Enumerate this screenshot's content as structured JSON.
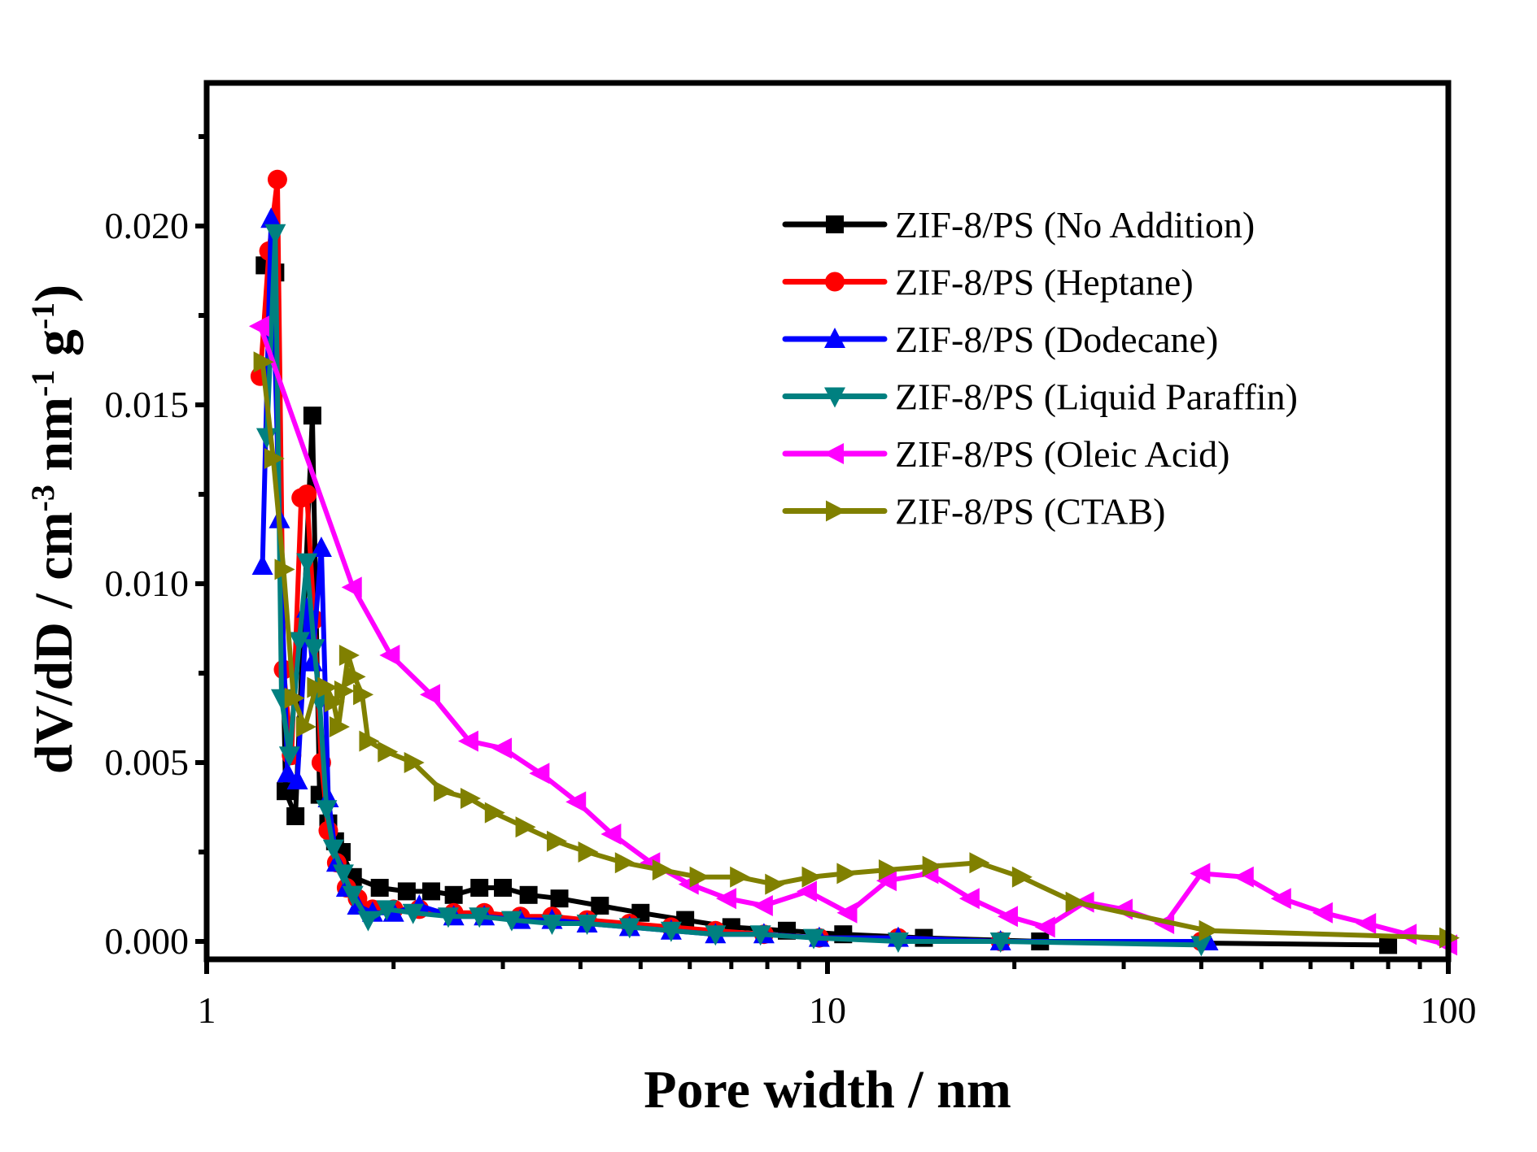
{
  "chart_data": {
    "type": "line",
    "title": "",
    "xlabel": "Pore width / nm",
    "ylabel": "dV/dD / cm-3 nm-1 g-1",
    "ylabel_parts": {
      "base": "dV/dD / cm",
      "sup1": "-3",
      "mid": " nm",
      "sup2": "-1",
      "mid2": " g",
      "sup3": "-1",
      "end": ")"
    },
    "xscale": "log",
    "xlim": [
      1,
      100
    ],
    "ylim": [
      -0.0005,
      0.024
    ],
    "x_ticks": [
      1,
      10,
      100
    ],
    "x_tick_labels": [
      "1",
      "10",
      "100"
    ],
    "y_ticks": [
      0.0,
      0.005,
      0.01,
      0.015,
      0.02
    ],
    "y_tick_labels": [
      "0.000",
      "0.005",
      "0.010",
      "0.015",
      "0.020"
    ],
    "grid": false,
    "legend_position": "top-right",
    "series": [
      {
        "name": "ZIF-8/PS (No Addition)",
        "color": "#000000",
        "marker": "square",
        "x": [
          1.24,
          1.29,
          1.34,
          1.39,
          1.48,
          1.52,
          1.57,
          1.61,
          1.65,
          1.72,
          1.9,
          2.1,
          2.3,
          2.5,
          2.75,
          3.0,
          3.3,
          3.7,
          4.3,
          5.0,
          5.9,
          7.0,
          8.6,
          10.6,
          14.3,
          22,
          80
        ],
        "y": [
          0.0189,
          0.0187,
          0.0042,
          0.0035,
          0.0147,
          0.0041,
          0.0033,
          0.0028,
          0.0025,
          0.0018,
          0.0015,
          0.0014,
          0.0014,
          0.0013,
          0.0015,
          0.0015,
          0.0013,
          0.0012,
          0.001,
          0.0008,
          0.0006,
          0.0004,
          0.0003,
          0.0002,
          0.0001,
          0.0,
          -0.0001
        ]
      },
      {
        "name": "ZIF-8/PS (Heptane)",
        "color": "#ff0000",
        "marker": "circle",
        "x": [
          1.22,
          1.26,
          1.3,
          1.33,
          1.37,
          1.42,
          1.45,
          1.49,
          1.53,
          1.57,
          1.62,
          1.68,
          1.75,
          1.85,
          2.0,
          2.2,
          2.5,
          2.8,
          3.2,
          3.6,
          4.1,
          4.8,
          5.6,
          6.6,
          7.9,
          9.7,
          13,
          19,
          40
        ],
        "y": [
          0.0158,
          0.0193,
          0.0213,
          0.0076,
          0.0052,
          0.0124,
          0.0125,
          0.009,
          0.005,
          0.0031,
          0.0022,
          0.0015,
          0.0012,
          0.0009,
          0.0009,
          0.0009,
          0.0008,
          0.0008,
          0.0007,
          0.0007,
          0.0006,
          0.0005,
          0.0004,
          0.0003,
          0.0002,
          0.0001,
          0.0001,
          0.0,
          0.0
        ]
      },
      {
        "name": "ZIF-8/PS (Dodecane)",
        "color": "#0000ff",
        "marker": "triangle-up",
        "x": [
          1.23,
          1.27,
          1.31,
          1.35,
          1.4,
          1.45,
          1.48,
          1.53,
          1.57,
          1.62,
          1.68,
          1.75,
          1.85,
          2.0,
          2.2,
          2.5,
          2.8,
          3.2,
          3.6,
          4.1,
          4.8,
          5.6,
          6.6,
          7.9,
          9.7,
          13,
          19,
          41
        ],
        "y": [
          0.0105,
          0.0202,
          0.0118,
          0.0047,
          0.0045,
          0.0093,
          0.0078,
          0.011,
          0.004,
          0.0022,
          0.0015,
          0.001,
          0.0008,
          0.0008,
          0.001,
          0.0007,
          0.0007,
          0.0006,
          0.0006,
          0.0005,
          0.0004,
          0.0003,
          0.0002,
          0.0002,
          0.0001,
          0.0001,
          0.0,
          0.0
        ]
      },
      {
        "name": "ZIF-8/PS (Liquid Paraffin)",
        "color": "#008080",
        "marker": "triangle-down",
        "x": [
          1.25,
          1.29,
          1.32,
          1.36,
          1.41,
          1.45,
          1.49,
          1.52,
          1.56,
          1.6,
          1.66,
          1.72,
          1.82,
          1.95,
          2.15,
          2.45,
          2.75,
          3.1,
          3.6,
          4.1,
          4.8,
          5.6,
          6.6,
          7.8,
          9.5,
          13,
          19,
          40
        ],
        "y": [
          0.0141,
          0.0198,
          0.0068,
          0.0052,
          0.0084,
          0.0106,
          0.0082,
          0.0067,
          0.0037,
          0.0026,
          0.0019,
          0.0013,
          0.0006,
          0.0009,
          0.0008,
          0.0007,
          0.0007,
          0.0006,
          0.0005,
          0.0005,
          0.0004,
          0.0003,
          0.0002,
          0.0002,
          0.0001,
          0.0,
          0.0,
          -0.0001
        ]
      },
      {
        "name": "ZIF-8/PS (Oleic Acid)",
        "color": "#ff00ff",
        "marker": "triangle-left",
        "x": [
          1.22,
          1.72,
          1.98,
          2.3,
          2.65,
          3.0,
          3.45,
          3.95,
          4.5,
          5.2,
          6.0,
          6.9,
          7.9,
          9.3,
          10.8,
          12.5,
          14.6,
          17,
          19.6,
          22.5,
          26,
          30,
          35,
          40,
          47,
          54,
          63,
          74,
          86,
          100
        ],
        "y": [
          0.0172,
          0.0099,
          0.008,
          0.0069,
          0.0056,
          0.0054,
          0.0047,
          0.0039,
          0.003,
          0.0022,
          0.0016,
          0.0012,
          0.001,
          0.0014,
          0.0008,
          0.0017,
          0.0019,
          0.0012,
          0.0007,
          0.0004,
          0.0011,
          0.0009,
          0.0005,
          0.0019,
          0.0018,
          0.0012,
          0.0008,
          0.0005,
          0.0002,
          -0.0001
        ]
      },
      {
        "name": "ZIF-8/PS (CTAB)",
        "color": "#808000",
        "marker": "triangle-right",
        "x": [
          1.23,
          1.28,
          1.33,
          1.38,
          1.44,
          1.5,
          1.56,
          1.6,
          1.63,
          1.66,
          1.69,
          1.73,
          1.78,
          1.82,
          1.95,
          2.15,
          2.4,
          2.65,
          2.9,
          3.25,
          3.65,
          4.1,
          4.7,
          5.4,
          6.2,
          7.2,
          8.2,
          9.4,
          10.7,
          12.5,
          14.7,
          17.5,
          20.5,
          25,
          41,
          100
        ],
        "y": [
          0.0162,
          0.0135,
          0.0104,
          0.0068,
          0.006,
          0.0071,
          0.0071,
          0.0067,
          0.006,
          0.007,
          0.008,
          0.0074,
          0.0069,
          0.0056,
          0.0053,
          0.005,
          0.0042,
          0.004,
          0.0036,
          0.0032,
          0.0028,
          0.0025,
          0.0022,
          0.002,
          0.0018,
          0.0018,
          0.0016,
          0.0018,
          0.0019,
          0.002,
          0.0021,
          0.0022,
          0.0018,
          0.0011,
          0.0003,
          0.0001
        ]
      }
    ]
  }
}
